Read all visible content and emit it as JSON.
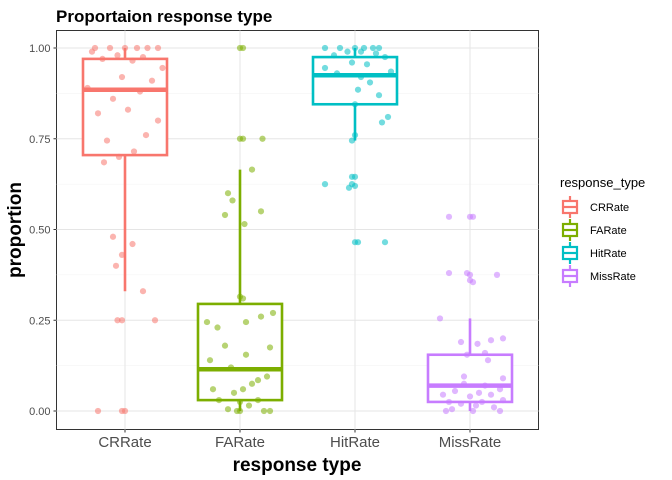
{
  "chart_data": {
    "type": "box",
    "title": "Proportaion response type",
    "xlabel": "response type",
    "ylabel": "proportion",
    "ylim": [
      -0.05,
      1.05
    ],
    "yticks": [
      0.0,
      0.25,
      0.5,
      0.75,
      1.0
    ],
    "ytick_labels": [
      "0.00",
      "0.25",
      "0.50",
      "0.75",
      "1.00"
    ],
    "categories": [
      "CRRate",
      "FARate",
      "HitRate",
      "MissRate"
    ],
    "grid": true,
    "legend": {
      "title": "response_type",
      "placement": "right",
      "entries": [
        "CRRate",
        "FARate",
        "HitRate",
        "MissRate"
      ]
    },
    "colors": {
      "CRRate": "#F8766D",
      "FARate": "#7CAE00",
      "HitRate": "#00BFC4",
      "MissRate": "#C77CFF"
    },
    "series": [
      {
        "name": "CRRate",
        "box": {
          "min": 0.33,
          "q1": 0.705,
          "median": 0.885,
          "q3": 0.97,
          "max": 1.0
        },
        "points": [
          {
            "x": -0.2,
            "y": 1.0
          },
          {
            "x": -0.1,
            "y": 1.0
          },
          {
            "x": 0.0,
            "y": 1.0
          },
          {
            "x": 0.08,
            "y": 1.0
          },
          {
            "x": 0.15,
            "y": 1.0
          },
          {
            "x": 0.22,
            "y": 1.0
          },
          {
            "x": -0.22,
            "y": 0.99
          },
          {
            "x": -0.05,
            "y": 0.98
          },
          {
            "x": 0.12,
            "y": 0.975
          },
          {
            "x": -0.15,
            "y": 0.97
          },
          {
            "x": 0.05,
            "y": 0.965
          },
          {
            "x": 0.25,
            "y": 0.945
          },
          {
            "x": -0.02,
            "y": 0.92
          },
          {
            "x": 0.18,
            "y": 0.91
          },
          {
            "x": -0.25,
            "y": 0.89
          },
          {
            "x": 0.1,
            "y": 0.88
          },
          {
            "x": -0.08,
            "y": 0.86
          },
          {
            "x": 0.02,
            "y": 0.83
          },
          {
            "x": -0.18,
            "y": 0.82
          },
          {
            "x": 0.22,
            "y": 0.8
          },
          {
            "x": 0.14,
            "y": 0.76
          },
          {
            "x": -0.12,
            "y": 0.745
          },
          {
            "x": 0.06,
            "y": 0.715
          },
          {
            "x": -0.04,
            "y": 0.7
          },
          {
            "x": -0.14,
            "y": 0.685
          },
          {
            "x": -0.08,
            "y": 0.48
          },
          {
            "x": 0.05,
            "y": 0.46
          },
          {
            "x": -0.02,
            "y": 0.43
          },
          {
            "x": -0.06,
            "y": 0.4
          },
          {
            "x": 0.12,
            "y": 0.33
          },
          {
            "x": -0.02,
            "y": 0.25
          },
          {
            "x": 0.2,
            "y": 0.25
          },
          {
            "x": -0.05,
            "y": 0.25
          },
          {
            "x": -0.18,
            "y": 0.0
          },
          {
            "x": -0.02,
            "y": 0.0
          },
          {
            "x": 0.0,
            "y": 0.0
          }
        ]
      },
      {
        "name": "FARate",
        "box": {
          "min": 0.0,
          "q1": 0.03,
          "median": 0.115,
          "q3": 0.295,
          "max": 0.665
        },
        "points": [
          {
            "x": 0.0,
            "y": 1.0
          },
          {
            "x": 0.02,
            "y": 1.0
          },
          {
            "x": 0.0,
            "y": 0.75
          },
          {
            "x": 0.02,
            "y": 0.75
          },
          {
            "x": 0.15,
            "y": 0.75
          },
          {
            "x": 0.08,
            "y": 0.665
          },
          {
            "x": -0.08,
            "y": 0.6
          },
          {
            "x": -0.05,
            "y": 0.58
          },
          {
            "x": 0.14,
            "y": 0.55
          },
          {
            "x": -0.1,
            "y": 0.54
          },
          {
            "x": 0.03,
            "y": 0.515
          },
          {
            "x": 0.0,
            "y": 0.315
          },
          {
            "x": 0.02,
            "y": 0.31
          },
          {
            "x": 0.22,
            "y": 0.27
          },
          {
            "x": 0.14,
            "y": 0.26
          },
          {
            "x": -0.22,
            "y": 0.245
          },
          {
            "x": 0.04,
            "y": 0.245
          },
          {
            "x": -0.15,
            "y": 0.23
          },
          {
            "x": -0.1,
            "y": 0.18
          },
          {
            "x": 0.2,
            "y": 0.175
          },
          {
            "x": 0.04,
            "y": 0.155
          },
          {
            "x": -0.2,
            "y": 0.14
          },
          {
            "x": -0.06,
            "y": 0.12
          },
          {
            "x": 0.18,
            "y": 0.095
          },
          {
            "x": 0.12,
            "y": 0.085
          },
          {
            "x": 0.08,
            "y": 0.075
          },
          {
            "x": -0.18,
            "y": 0.06
          },
          {
            "x": 0.02,
            "y": 0.06
          },
          {
            "x": -0.04,
            "y": 0.05
          },
          {
            "x": 0.12,
            "y": 0.03
          },
          {
            "x": -0.14,
            "y": 0.03
          },
          {
            "x": 0.0,
            "y": 0.025
          },
          {
            "x": 0.06,
            "y": 0.015
          },
          {
            "x": -0.08,
            "y": 0.005
          },
          {
            "x": 0.16,
            "y": 0.0
          },
          {
            "x": 0.0,
            "y": 0.0
          },
          {
            "x": 0.2,
            "y": 0.0
          },
          {
            "x": -0.02,
            "y": 0.0
          }
        ]
      },
      {
        "name": "HitRate",
        "box": {
          "min": 0.745,
          "q1": 0.845,
          "median": 0.925,
          "q3": 0.975,
          "max": 1.0
        },
        "points": [
          {
            "x": -0.2,
            "y": 1.0
          },
          {
            "x": -0.1,
            "y": 1.0
          },
          {
            "x": 0.0,
            "y": 1.0
          },
          {
            "x": 0.06,
            "y": 1.0
          },
          {
            "x": 0.12,
            "y": 1.0
          },
          {
            "x": 0.16,
            "y": 1.0
          },
          {
            "x": -0.05,
            "y": 0.99
          },
          {
            "x": 0.04,
            "y": 0.99
          },
          {
            "x": 0.14,
            "y": 0.985
          },
          {
            "x": -0.14,
            "y": 0.98
          },
          {
            "x": 0.2,
            "y": 0.975
          },
          {
            "x": -0.02,
            "y": 0.96
          },
          {
            "x": 0.08,
            "y": 0.955
          },
          {
            "x": -0.2,
            "y": 0.945
          },
          {
            "x": 0.24,
            "y": 0.935
          },
          {
            "x": -0.12,
            "y": 0.93
          },
          {
            "x": 0.04,
            "y": 0.92
          },
          {
            "x": 0.1,
            "y": 0.905
          },
          {
            "x": 0.02,
            "y": 0.885
          },
          {
            "x": 0.16,
            "y": 0.87
          },
          {
            "x": 0.0,
            "y": 0.845
          },
          {
            "x": 0.22,
            "y": 0.81
          },
          {
            "x": 0.18,
            "y": 0.795
          },
          {
            "x": 0.0,
            "y": 0.76
          },
          {
            "x": -0.02,
            "y": 0.745
          },
          {
            "x": -0.2,
            "y": 0.625
          },
          {
            "x": -0.02,
            "y": 0.645
          },
          {
            "x": 0.0,
            "y": 0.645
          },
          {
            "x": -0.02,
            "y": 0.625
          },
          {
            "x": 0.0,
            "y": 0.62
          },
          {
            "x": -0.04,
            "y": 0.615
          },
          {
            "x": 0.0,
            "y": 0.465
          },
          {
            "x": 0.02,
            "y": 0.465
          },
          {
            "x": 0.2,
            "y": 0.465
          }
        ]
      },
      {
        "name": "MissRate",
        "box": {
          "min": 0.0,
          "q1": 0.025,
          "median": 0.07,
          "q3": 0.155,
          "max": 0.255
        },
        "points": [
          {
            "x": -0.14,
            "y": 0.535
          },
          {
            "x": 0.0,
            "y": 0.535
          },
          {
            "x": 0.02,
            "y": 0.535
          },
          {
            "x": -0.14,
            "y": 0.38
          },
          {
            "x": -0.02,
            "y": 0.38
          },
          {
            "x": 0.0,
            "y": 0.375
          },
          {
            "x": 0.18,
            "y": 0.375
          },
          {
            "x": 0.0,
            "y": 0.36
          },
          {
            "x": 0.02,
            "y": 0.355
          },
          {
            "x": -0.2,
            "y": 0.255
          },
          {
            "x": 0.22,
            "y": 0.2
          },
          {
            "x": 0.14,
            "y": 0.195
          },
          {
            "x": 0.05,
            "y": 0.185
          },
          {
            "x": -0.06,
            "y": 0.19
          },
          {
            "x": 0.1,
            "y": 0.16
          },
          {
            "x": -0.02,
            "y": 0.155
          },
          {
            "x": 0.12,
            "y": 0.14
          },
          {
            "x": -0.04,
            "y": 0.095
          },
          {
            "x": 0.22,
            "y": 0.09
          },
          {
            "x": -0.04,
            "y": 0.075
          },
          {
            "x": 0.1,
            "y": 0.07
          },
          {
            "x": 0.2,
            "y": 0.06
          },
          {
            "x": -0.1,
            "y": 0.055
          },
          {
            "x": 0.06,
            "y": 0.05
          },
          {
            "x": -0.18,
            "y": 0.045
          },
          {
            "x": 0.14,
            "y": 0.045
          },
          {
            "x": 0.0,
            "y": 0.04
          },
          {
            "x": 0.22,
            "y": 0.03
          },
          {
            "x": -0.14,
            "y": 0.025
          },
          {
            "x": 0.08,
            "y": 0.025
          },
          {
            "x": -0.06,
            "y": 0.02
          },
          {
            "x": 0.04,
            "y": 0.015
          },
          {
            "x": 0.16,
            "y": 0.01
          },
          {
            "x": -0.12,
            "y": 0.005
          },
          {
            "x": 0.2,
            "y": 0.0
          },
          {
            "x": -0.16,
            "y": 0.0
          },
          {
            "x": 0.02,
            "y": 0.0
          }
        ]
      }
    ]
  }
}
